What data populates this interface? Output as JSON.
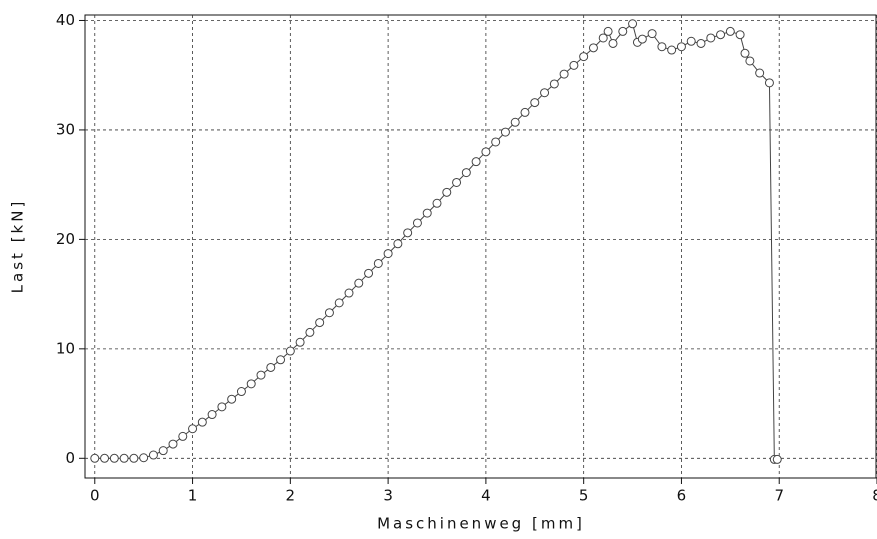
{
  "chart_data": {
    "type": "line",
    "x_label": "Maschinenweg [mm]",
    "y_label": "Last [kN]",
    "x": [
      0,
      0.1,
      0.2,
      0.3,
      0.4,
      0.5,
      0.6,
      0.7,
      0.8,
      0.9,
      1.0,
      1.1,
      1.2,
      1.3,
      1.4,
      1.5,
      1.6,
      1.7,
      1.8,
      1.9,
      2.0,
      2.1,
      2.2,
      2.3,
      2.4,
      2.5,
      2.6,
      2.7,
      2.8,
      2.9,
      3.0,
      3.1,
      3.2,
      3.3,
      3.4,
      3.5,
      3.6,
      3.7,
      3.8,
      3.9,
      4.0,
      4.1,
      4.2,
      4.3,
      4.4,
      4.5,
      4.6,
      4.7,
      4.8,
      4.9,
      5.0,
      5.1,
      5.2,
      5.25,
      5.3,
      5.4,
      5.5,
      5.55,
      5.6,
      5.7,
      5.8,
      5.9,
      6.0,
      6.1,
      6.2,
      6.3,
      6.4,
      6.5,
      6.6,
      6.65,
      6.7,
      6.8,
      6.9,
      6.95,
      6.98
    ],
    "values": [
      0,
      0,
      0,
      0,
      0,
      0.05,
      0.3,
      0.7,
      1.3,
      2.0,
      2.7,
      3.3,
      4.0,
      4.7,
      5.4,
      6.1,
      6.8,
      7.6,
      8.3,
      9.0,
      9.8,
      10.6,
      11.5,
      12.4,
      13.3,
      14.2,
      15.1,
      16.0,
      16.9,
      17.8,
      18.7,
      19.6,
      20.6,
      21.5,
      22.4,
      23.3,
      24.3,
      25.2,
      26.1,
      27.1,
      28.0,
      28.9,
      29.8,
      30.7,
      31.6,
      32.5,
      33.4,
      34.2,
      35.1,
      35.9,
      36.7,
      37.5,
      38.4,
      39.0,
      37.9,
      39.0,
      39.7,
      38.0,
      38.3,
      38.8,
      37.6,
      37.3,
      37.6,
      38.1,
      37.9,
      38.4,
      38.7,
      39.0,
      38.7,
      37.0,
      36.3,
      35.2,
      34.3,
      -0.1,
      -0.1
    ],
    "color": "#444444",
    "xlim": [
      -0.1,
      8
    ],
    "ylim": [
      -1.8,
      40.5
    ],
    "xticks": [
      0,
      1,
      2,
      3,
      4,
      5,
      6,
      7,
      8
    ],
    "yticks": [
      0,
      10,
      20,
      30,
      40
    ],
    "grid": true
  }
}
